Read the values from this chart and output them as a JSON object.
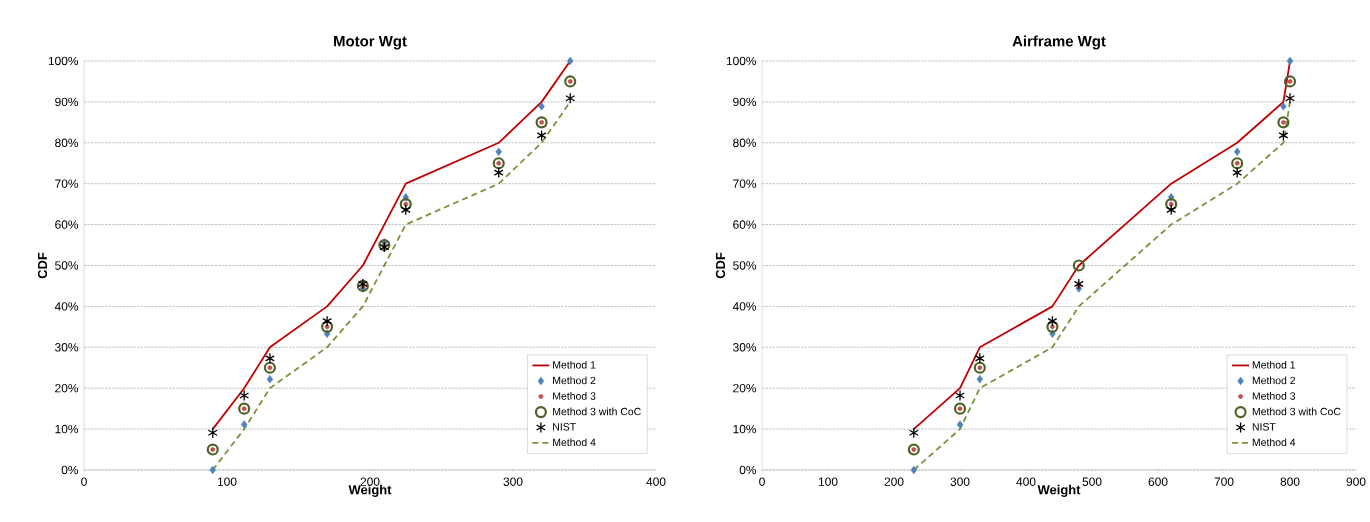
{
  "chart_data": [
    {
      "type": "scatter",
      "title": "Motor Wgt",
      "xlabel": "Weight",
      "ylabel": "CDF",
      "grid": "y",
      "legend": "bottom right",
      "xlim": [
        0,
        400
      ],
      "xticks": [
        0,
        100,
        200,
        300,
        400
      ],
      "ylim": [
        0,
        100
      ],
      "yticks": [
        {
          "value": 0,
          "label": "0%"
        },
        {
          "value": 10,
          "label": "10%"
        },
        {
          "value": 20,
          "label": "20%"
        },
        {
          "value": 30,
          "label": "30%"
        },
        {
          "value": 40,
          "label": "40%"
        },
        {
          "value": 50,
          "label": "50%"
        },
        {
          "value": 60,
          "label": "60%"
        },
        {
          "value": 70,
          "label": "70%"
        },
        {
          "value": 80,
          "label": "80%"
        },
        {
          "value": 90,
          "label": "90%"
        },
        {
          "value": 100,
          "label": "100%"
        }
      ],
      "x": [
        90,
        112,
        130,
        170,
        195,
        210,
        225,
        290,
        320,
        340
      ],
      "series": [
        {
          "name": "Method 1",
          "type": "line",
          "color": "#c00000",
          "marker": "none",
          "line_style": "solid",
          "values": [
            10,
            20,
            30,
            40,
            50,
            60,
            70,
            80,
            90,
            100
          ]
        },
        {
          "name": "Method 2",
          "color": "#4f81bd",
          "marker": "diamond",
          "values": [
            0,
            11.1,
            22.2,
            33.3,
            44.4,
            55.6,
            66.7,
            77.8,
            88.9,
            100
          ]
        },
        {
          "name": "Method 3",
          "color": "#c0504d",
          "marker": "circle",
          "values": [
            5,
            15,
            25,
            35,
            45,
            55,
            65,
            75,
            85,
            95
          ]
        },
        {
          "name": "Method 3 with CoC",
          "color": "#4f6228",
          "marker": "circle",
          "values": [
            5,
            15,
            25,
            35,
            45,
            55,
            65,
            75,
            85,
            95
          ]
        },
        {
          "name": "NIST",
          "color": "#000000",
          "marker": "cross",
          "values": [
            9.1,
            18.2,
            27.3,
            36.4,
            45.5,
            54.5,
            63.6,
            72.7,
            81.8,
            90.9
          ]
        },
        {
          "name": "Method 4",
          "type": "line",
          "color": "#77933c",
          "marker": "none",
          "line_style": "dashed",
          "values": [
            0,
            10,
            20,
            30,
            40,
            50,
            60,
            70,
            80,
            90
          ]
        }
      ]
    },
    {
      "type": "scatter",
      "title": "Airframe Wgt",
      "xlabel": "Weight",
      "ylabel": "CDF",
      "grid": "y",
      "legend": "bottom right",
      "xlim": [
        0,
        900
      ],
      "xticks": [
        0,
        100,
        200,
        300,
        400,
        500,
        600,
        700,
        800,
        900
      ],
      "ylim": [
        0,
        100
      ],
      "yticks": [
        {
          "value": 0,
          "label": "0%"
        },
        {
          "value": 10,
          "label": "10%"
        },
        {
          "value": 20,
          "label": "20%"
        },
        {
          "value": 30,
          "label": "30%"
        },
        {
          "value": 40,
          "label": "40%"
        },
        {
          "value": 50,
          "label": "50%"
        },
        {
          "value": 60,
          "label": "60%"
        },
        {
          "value": 70,
          "label": "70%"
        },
        {
          "value": 80,
          "label": "80%"
        },
        {
          "value": 90,
          "label": "90%"
        },
        {
          "value": 100,
          "label": "100%"
        }
      ],
      "x": [
        230,
        300,
        330,
        440,
        480,
        620,
        720,
        790,
        800
      ],
      "series": [
        {
          "name": "Method 1",
          "type": "line",
          "color": "#c00000",
          "marker": "none",
          "line_style": "solid",
          "values": [
            10,
            20,
            30,
            40,
            50,
            70,
            80,
            90,
            100
          ]
        },
        {
          "name": "Method 2",
          "color": "#4f81bd",
          "marker": "diamond",
          "values": [
            0,
            11.1,
            22.2,
            33.3,
            44.4,
            66.7,
            77.8,
            88.9,
            100
          ]
        },
        {
          "name": "Method 3",
          "color": "#c0504d",
          "marker": "circle",
          "values": [
            5,
            15,
            25,
            35,
            45,
            65,
            75,
            85,
            95
          ]
        },
        {
          "name": "Method 3 with CoC",
          "color": "#4f6228",
          "marker": "circle",
          "values": [
            5,
            15,
            25,
            35,
            50,
            65,
            75,
            85,
            95
          ]
        },
        {
          "name": "NIST",
          "color": "#000000",
          "marker": "cross",
          "values": [
            9.1,
            18.2,
            27.3,
            36.4,
            45.5,
            63.6,
            72.7,
            81.8,
            90.9
          ]
        },
        {
          "name": "Method 4",
          "type": "line",
          "color": "#77933c",
          "marker": "none",
          "line_style": "dashed",
          "values": [
            0,
            10,
            20,
            30,
            40,
            60,
            70,
            80,
            90
          ]
        }
      ]
    }
  ]
}
